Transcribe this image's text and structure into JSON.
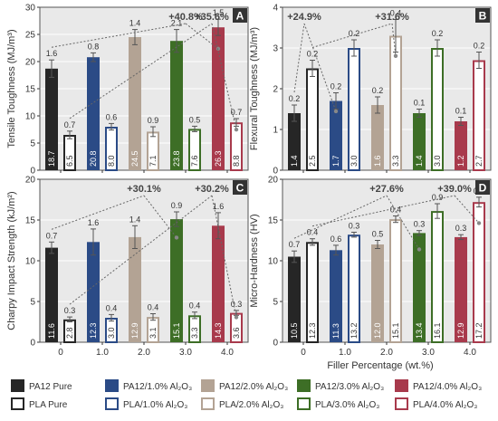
{
  "figure": {
    "x_axis_label": "Filler Percentage (wt.%)"
  },
  "chart_data": [
    {
      "id": "A",
      "type": "bar",
      "ylabel": "Tensile Toughness (MJ/m³)",
      "categories": [
        "0",
        "1.0",
        "2.0",
        "3.0",
        "4.0"
      ],
      "ylim": [
        0,
        30
      ],
      "yticks": [
        0,
        5,
        10,
        15,
        20,
        25,
        30
      ],
      "series": [
        {
          "name": "PA12",
          "values": [
            18.7,
            20.8,
            24.5,
            23.8,
            26.3
          ],
          "err": [
            1.6,
            0.8,
            1.4,
            2.1,
            1.5
          ],
          "labels": [
            "18.7",
            "20.8",
            "24.5",
            "23.8",
            "26.3"
          ],
          "err_labels": [
            "1.6",
            "0.8",
            "1.4",
            "2.1",
            "1.5"
          ]
        },
        {
          "name": "PLA",
          "values": [
            6.5,
            8.0,
            7.1,
            7.6,
            8.8
          ],
          "err": [
            0.7,
            0.6,
            0.9,
            0.5,
            0.7
          ],
          "labels": [
            "6.5",
            "8.0",
            "7.1",
            "7.6",
            "8.8"
          ],
          "err_labels": [
            "0.7",
            "0.6",
            "0.9",
            "0.5",
            "0.7"
          ]
        }
      ],
      "annotations": [
        {
          "text": "+40.8%",
          "from_series": 0,
          "from_cat": 0,
          "to_series": 0,
          "to_cat": 4
        },
        {
          "text": "+35.6%",
          "from_series": 1,
          "from_cat": 0,
          "to_series": 1,
          "to_cat": 4
        }
      ]
    },
    {
      "id": "B",
      "type": "bar",
      "ylabel": "Flexural Toughness (MJ/m³)",
      "categories": [
        "0",
        "1.0",
        "2.0",
        "3.0",
        "4.0"
      ],
      "ylim": [
        0,
        4
      ],
      "yticks": [
        0,
        1,
        2,
        3,
        4
      ],
      "series": [
        {
          "name": "PA12",
          "values": [
            1.4,
            1.7,
            1.6,
            1.4,
            1.2
          ],
          "err": [
            0.2,
            0.2,
            0.2,
            0.1,
            0.1
          ],
          "labels": [
            "1.4",
            "1.7",
            "1.6",
            "1.4",
            "1.2"
          ],
          "err_labels": [
            "0.2",
            "0.2",
            "0.2",
            "0.1",
            "0.1"
          ]
        },
        {
          "name": "PLA",
          "values": [
            2.5,
            3.0,
            3.3,
            3.0,
            2.7
          ],
          "err": [
            0.2,
            0.2,
            0.4,
            0.2,
            0.2
          ],
          "labels": [
            "2.5",
            "3.0",
            "3.3",
            "3.0",
            "2.7"
          ],
          "err_labels": [
            "0.2",
            "0.2",
            "0.4",
            "0.2",
            "0.2"
          ]
        }
      ],
      "annotations": [
        {
          "text": "+24.9%",
          "from_series": 0,
          "from_cat": 0,
          "to_series": 0,
          "to_cat": 1
        },
        {
          "text": "+31.6%",
          "from_series": 1,
          "from_cat": 0,
          "to_series": 1,
          "to_cat": 2
        }
      ]
    },
    {
      "id": "C",
      "type": "bar",
      "ylabel": "Charpy Impact Strength (kJ/m²)",
      "categories": [
        "0",
        "1.0",
        "2.0",
        "3.0",
        "4.0"
      ],
      "ylim": [
        0,
        20
      ],
      "yticks": [
        0,
        5,
        10,
        15,
        20
      ],
      "series": [
        {
          "name": "PA12",
          "values": [
            11.6,
            12.3,
            12.9,
            15.1,
            14.3
          ],
          "err": [
            0.7,
            1.6,
            1.4,
            0.9,
            1.6
          ],
          "labels": [
            "11.6",
            "12.3",
            "12.9",
            "15.1",
            "14.3"
          ],
          "err_labels": [
            "0.7",
            "1.6",
            "1.4",
            "0.9",
            "1.6"
          ]
        },
        {
          "name": "PLA",
          "values": [
            2.8,
            3.0,
            3.1,
            3.3,
            3.6
          ],
          "err": [
            0.3,
            0.4,
            0.4,
            0.4,
            0.3
          ],
          "labels": [
            "2.8",
            "3.0",
            "3.1",
            "3.3",
            "3.6"
          ],
          "err_labels": [
            "0.3",
            "0.4",
            "0.4",
            "0.4",
            "0.3"
          ]
        }
      ],
      "annotations": [
        {
          "text": "+30.1%",
          "from_series": 0,
          "from_cat": 0,
          "to_series": 0,
          "to_cat": 3
        },
        {
          "text": "+30.2%",
          "from_series": 1,
          "from_cat": 0,
          "to_series": 1,
          "to_cat": 4
        }
      ]
    },
    {
      "id": "D",
      "type": "bar",
      "ylabel": "Micro-Hardness (HV)",
      "categories": [
        "0",
        "1.0",
        "2.0",
        "3.0",
        "4.0"
      ],
      "ylim": [
        0,
        20
      ],
      "yticks": [
        0,
        5,
        10,
        15,
        20
      ],
      "series": [
        {
          "name": "PA12",
          "values": [
            10.5,
            11.3,
            12.0,
            13.4,
            12.9
          ],
          "err": [
            0.7,
            0.6,
            0.5,
            0.3,
            0.3
          ],
          "labels": [
            "10.5",
            "11.3",
            "12.0",
            "13.4",
            "12.9"
          ],
          "err_labels": [
            "0.7",
            "0.6",
            "0.5",
            "0.3",
            "0.3"
          ]
        },
        {
          "name": "PLA",
          "values": [
            12.3,
            13.2,
            15.1,
            16.1,
            17.2
          ],
          "err": [
            0.4,
            0.3,
            0.4,
            0.9,
            0.6
          ],
          "labels": [
            "12.3",
            "13.2",
            "15.1",
            "16.1",
            "17.2"
          ],
          "err_labels": [
            "0.4",
            "0.3",
            "0.4",
            "0.9",
            "0.6"
          ]
        }
      ],
      "annotations": [
        {
          "text": "+27.6%",
          "from_series": 0,
          "from_cat": 0,
          "to_series": 0,
          "to_cat": 3
        },
        {
          "text": "+39.0%",
          "from_series": 1,
          "from_cat": 0,
          "to_series": 1,
          "to_cat": 4
        }
      ]
    }
  ],
  "category_colors": [
    "#262626",
    "#2b4b86",
    "#b3a394",
    "#3d6e26",
    "#a83a4c"
  ],
  "legend": {
    "filled": [
      "PA12 Pure",
      "PA12/1.0% Al₂O₃",
      "PA12/2.0% Al₂O₃",
      "PA12/3.0% Al₂O₃",
      "PA12/4.0% Al₂O₃"
    ],
    "outlined": [
      "PLA Pure",
      "PLA/1.0% Al₂O₃",
      "PLA/2.0% Al₂O₃",
      "PLA/3.0% Al₂O₃",
      "PLA/4.0% Al₂O₃"
    ]
  }
}
